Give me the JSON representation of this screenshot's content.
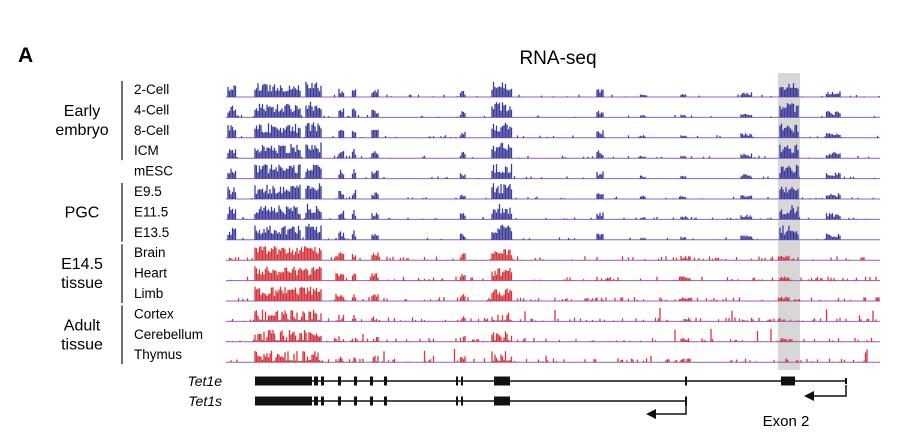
{
  "panel_letter": "A",
  "title": "RNA-seq",
  "groups": [
    {
      "lines": [
        "Early",
        "embryo"
      ],
      "tracks": [
        "2-Cell",
        "4-Cell",
        "8-Cell",
        "ICM"
      ]
    },
    {
      "lines": [],
      "tracks": [
        "mESC"
      ]
    },
    {
      "lines": [
        "PGC"
      ],
      "tracks": [
        "E9.5",
        "E11.5",
        "E13.5"
      ]
    },
    {
      "lines": [
        "E14.5",
        "tissue"
      ],
      "tracks": [
        "Brain",
        "Heart",
        "Limb"
      ]
    },
    {
      "lines": [
        "Adult",
        "tissue"
      ],
      "tracks": [
        "Cortex",
        "Cerebellum",
        "Thymus"
      ]
    }
  ],
  "genes": [
    {
      "name": "Tet1e"
    },
    {
      "name": "Tet1s"
    }
  ],
  "highlight_label": "Exon 2",
  "colors": {
    "blue": "#3a3c9c",
    "red": "#d8353a",
    "baseline": "#9a5cc8",
    "highlight": "#d7d7d7",
    "gene": "#111111"
  }
}
